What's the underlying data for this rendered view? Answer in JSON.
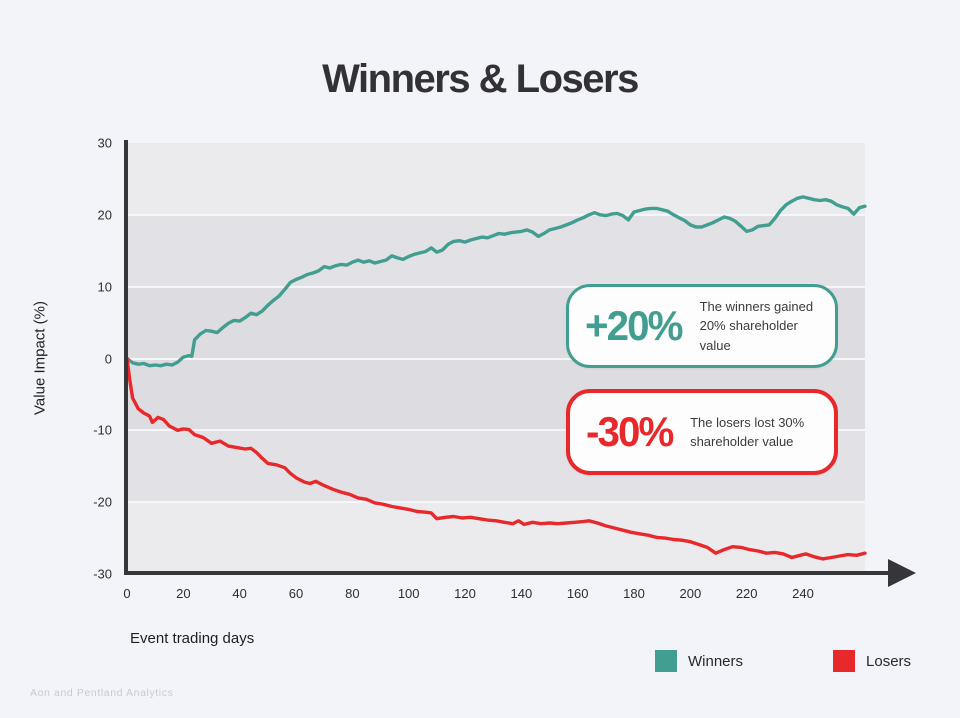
{
  "page": {
    "title": "Winners & Losers",
    "background_color": "#f3f4f9",
    "footnote": "Aon and Pentland Analytics"
  },
  "chart_data": {
    "type": "line",
    "title": "Winners & Losers",
    "xlabel": "Event trading days",
    "ylabel": "Value Impact (%)",
    "xlim": [
      0,
      262
    ],
    "ylim": [
      -30,
      30
    ],
    "x_ticks": [
      0,
      20,
      40,
      60,
      80,
      100,
      120,
      140,
      160,
      180,
      200,
      220,
      240
    ],
    "y_ticks": [
      30,
      20,
      10,
      0,
      -10,
      -20,
      -30
    ],
    "grid": "horizontal-bands",
    "band_colors": [
      "#ebebee",
      "#e2e2e6",
      "#dcdce1",
      "#dcdce1",
      "#e2e2e6",
      "#ebebee"
    ],
    "axis_color": "#35353a",
    "legend_position": "bottom-right",
    "series": [
      {
        "name": "Winners",
        "color": "#429e90",
        "points": [
          [
            0,
            0
          ],
          [
            2,
            -0.6
          ],
          [
            4,
            -0.8
          ],
          [
            6,
            -0.7
          ],
          [
            8,
            -1.0
          ],
          [
            10,
            -0.9
          ],
          [
            12,
            -1.0
          ],
          [
            14,
            -0.8
          ],
          [
            16,
            -0.9
          ],
          [
            18,
            -0.5
          ],
          [
            20,
            0.2
          ],
          [
            22,
            0.4
          ],
          [
            23,
            0.3
          ],
          [
            24,
            2.6
          ],
          [
            26,
            3.4
          ],
          [
            28,
            3.9
          ],
          [
            30,
            3.8
          ],
          [
            32,
            3.6
          ],
          [
            34,
            4.3
          ],
          [
            36,
            4.9
          ],
          [
            38,
            5.3
          ],
          [
            40,
            5.2
          ],
          [
            42,
            5.7
          ],
          [
            44,
            6.3
          ],
          [
            46,
            6.1
          ],
          [
            48,
            6.6
          ],
          [
            50,
            7.4
          ],
          [
            52,
            8.1
          ],
          [
            54,
            8.7
          ],
          [
            56,
            9.6
          ],
          [
            58,
            10.6
          ],
          [
            60,
            11.0
          ],
          [
            62,
            11.3
          ],
          [
            64,
            11.7
          ],
          [
            66,
            11.9
          ],
          [
            68,
            12.2
          ],
          [
            70,
            12.8
          ],
          [
            72,
            12.6
          ],
          [
            74,
            12.9
          ],
          [
            76,
            13.1
          ],
          [
            78,
            13.0
          ],
          [
            80,
            13.4
          ],
          [
            82,
            13.7
          ],
          [
            84,
            13.4
          ],
          [
            86,
            13.6
          ],
          [
            88,
            13.3
          ],
          [
            90,
            13.5
          ],
          [
            92,
            13.7
          ],
          [
            94,
            14.3
          ],
          [
            96,
            14.0
          ],
          [
            98,
            13.8
          ],
          [
            100,
            14.2
          ],
          [
            102,
            14.5
          ],
          [
            104,
            14.7
          ],
          [
            106,
            14.9
          ],
          [
            108,
            15.4
          ],
          [
            110,
            14.8
          ],
          [
            112,
            15.1
          ],
          [
            114,
            15.9
          ],
          [
            116,
            16.3
          ],
          [
            118,
            16.4
          ],
          [
            120,
            16.2
          ],
          [
            122,
            16.5
          ],
          [
            124,
            16.7
          ],
          [
            126,
            16.9
          ],
          [
            128,
            16.8
          ],
          [
            130,
            17.1
          ],
          [
            132,
            17.4
          ],
          [
            134,
            17.3
          ],
          [
            136,
            17.5
          ],
          [
            138,
            17.6
          ],
          [
            140,
            17.7
          ],
          [
            142,
            17.9
          ],
          [
            144,
            17.6
          ],
          [
            146,
            17.0
          ],
          [
            148,
            17.4
          ],
          [
            150,
            17.9
          ],
          [
            152,
            18.1
          ],
          [
            154,
            18.3
          ],
          [
            156,
            18.6
          ],
          [
            158,
            18.9
          ],
          [
            160,
            19.3
          ],
          [
            162,
            19.6
          ],
          [
            164,
            20.0
          ],
          [
            166,
            20.3
          ],
          [
            168,
            20.0
          ],
          [
            170,
            19.9
          ],
          [
            172,
            20.1
          ],
          [
            174,
            20.2
          ],
          [
            176,
            19.9
          ],
          [
            178,
            19.3
          ],
          [
            180,
            20.4
          ],
          [
            182,
            20.6
          ],
          [
            184,
            20.8
          ],
          [
            186,
            20.9
          ],
          [
            188,
            20.9
          ],
          [
            190,
            20.7
          ],
          [
            192,
            20.5
          ],
          [
            194,
            20.0
          ],
          [
            196,
            19.6
          ],
          [
            198,
            19.2
          ],
          [
            200,
            18.6
          ],
          [
            202,
            18.3
          ],
          [
            204,
            18.3
          ],
          [
            206,
            18.6
          ],
          [
            208,
            18.9
          ],
          [
            210,
            19.3
          ],
          [
            212,
            19.7
          ],
          [
            214,
            19.5
          ],
          [
            216,
            19.1
          ],
          [
            218,
            18.4
          ],
          [
            220,
            17.7
          ],
          [
            222,
            17.9
          ],
          [
            224,
            18.4
          ],
          [
            226,
            18.5
          ],
          [
            228,
            18.6
          ],
          [
            230,
            19.5
          ],
          [
            232,
            20.6
          ],
          [
            234,
            21.4
          ],
          [
            236,
            21.9
          ],
          [
            238,
            22.3
          ],
          [
            240,
            22.5
          ],
          [
            242,
            22.3
          ],
          [
            244,
            22.1
          ],
          [
            246,
            22.0
          ],
          [
            248,
            22.1
          ],
          [
            250,
            21.9
          ],
          [
            252,
            21.4
          ],
          [
            254,
            21.1
          ],
          [
            256,
            20.9
          ],
          [
            258,
            20.1
          ],
          [
            260,
            21.0
          ],
          [
            262,
            21.2
          ]
        ]
      },
      {
        "name": "Losers",
        "color": "#e8292b",
        "points": [
          [
            0,
            0
          ],
          [
            1,
            -3.0
          ],
          [
            2,
            -5.5
          ],
          [
            4,
            -7.0
          ],
          [
            6,
            -7.6
          ],
          [
            8,
            -8.0
          ],
          [
            9,
            -8.9
          ],
          [
            11,
            -8.2
          ],
          [
            13,
            -8.5
          ],
          [
            15,
            -9.4
          ],
          [
            18,
            -10.0
          ],
          [
            20,
            -9.8
          ],
          [
            22,
            -9.9
          ],
          [
            24,
            -10.6
          ],
          [
            27,
            -11.0
          ],
          [
            30,
            -11.8
          ],
          [
            33,
            -11.5
          ],
          [
            36,
            -12.2
          ],
          [
            39,
            -12.4
          ],
          [
            42,
            -12.6
          ],
          [
            44,
            -12.5
          ],
          [
            46,
            -13.1
          ],
          [
            48,
            -13.9
          ],
          [
            50,
            -14.6
          ],
          [
            53,
            -14.8
          ],
          [
            56,
            -15.2
          ],
          [
            58,
            -16.0
          ],
          [
            60,
            -16.6
          ],
          [
            63,
            -17.2
          ],
          [
            65,
            -17.4
          ],
          [
            67,
            -17.1
          ],
          [
            70,
            -17.7
          ],
          [
            73,
            -18.2
          ],
          [
            76,
            -18.6
          ],
          [
            79,
            -18.9
          ],
          [
            82,
            -19.4
          ],
          [
            85,
            -19.6
          ],
          [
            88,
            -20.1
          ],
          [
            91,
            -20.3
          ],
          [
            94,
            -20.6
          ],
          [
            97,
            -20.8
          ],
          [
            100,
            -21.0
          ],
          [
            103,
            -21.3
          ],
          [
            106,
            -21.4
          ],
          [
            108,
            -21.5
          ],
          [
            110,
            -22.3
          ],
          [
            113,
            -22.1
          ],
          [
            116,
            -22.0
          ],
          [
            119,
            -22.2
          ],
          [
            122,
            -22.1
          ],
          [
            125,
            -22.3
          ],
          [
            128,
            -22.5
          ],
          [
            131,
            -22.6
          ],
          [
            134,
            -22.8
          ],
          [
            137,
            -23.0
          ],
          [
            139,
            -22.6
          ],
          [
            141,
            -23.1
          ],
          [
            144,
            -22.8
          ],
          [
            147,
            -23.0
          ],
          [
            150,
            -22.9
          ],
          [
            153,
            -23.0
          ],
          [
            156,
            -22.9
          ],
          [
            159,
            -22.8
          ],
          [
            162,
            -22.7
          ],
          [
            164,
            -22.6
          ],
          [
            167,
            -22.9
          ],
          [
            170,
            -23.3
          ],
          [
            173,
            -23.6
          ],
          [
            176,
            -23.9
          ],
          [
            179,
            -24.2
          ],
          [
            182,
            -24.4
          ],
          [
            185,
            -24.6
          ],
          [
            188,
            -24.9
          ],
          [
            191,
            -25.0
          ],
          [
            194,
            -25.2
          ],
          [
            197,
            -25.3
          ],
          [
            200,
            -25.5
          ],
          [
            203,
            -25.9
          ],
          [
            206,
            -26.3
          ],
          [
            209,
            -27.1
          ],
          [
            212,
            -26.6
          ],
          [
            215,
            -26.2
          ],
          [
            218,
            -26.3
          ],
          [
            221,
            -26.6
          ],
          [
            224,
            -26.8
          ],
          [
            227,
            -27.1
          ],
          [
            230,
            -27.0
          ],
          [
            233,
            -27.2
          ],
          [
            236,
            -27.7
          ],
          [
            239,
            -27.4
          ],
          [
            241,
            -27.2
          ],
          [
            244,
            -27.6
          ],
          [
            247,
            -27.9
          ],
          [
            250,
            -27.7
          ],
          [
            253,
            -27.5
          ],
          [
            256,
            -27.3
          ],
          [
            259,
            -27.4
          ],
          [
            262,
            -27.1
          ]
        ]
      }
    ]
  },
  "annotations": [
    {
      "value": "+20%",
      "text": "The winners gained 20% shareholder value",
      "color": "#429e90"
    },
    {
      "value": "-30%",
      "text": "The losers lost 30% shareholder value",
      "color": "#e8292b"
    }
  ],
  "legend": [
    {
      "label": "Winners",
      "color": "#429e90"
    },
    {
      "label": "Losers",
      "color": "#e8292b"
    }
  ]
}
